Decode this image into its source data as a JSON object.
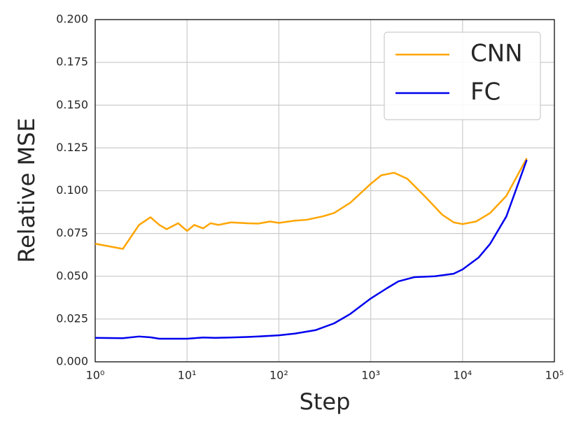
{
  "chart_data": {
    "type": "line",
    "xlabel": "Step",
    "ylabel": "Relative MSE",
    "xscale": "log",
    "xlim": [
      1,
      100000
    ],
    "xticks": [
      {
        "value": 1,
        "label": "10⁰"
      },
      {
        "value": 10,
        "label": "10¹"
      },
      {
        "value": 100,
        "label": "10²"
      },
      {
        "value": 1000,
        "label": "10³"
      },
      {
        "value": 10000,
        "label": "10⁴"
      },
      {
        "value": 100000,
        "label": "10⁵"
      }
    ],
    "ylim": [
      0,
      0.2
    ],
    "yticks": [
      {
        "value": 0,
        "label": "0.000"
      },
      {
        "value": 0.025,
        "label": "0.025"
      },
      {
        "value": 0.05,
        "label": "0.050"
      },
      {
        "value": 0.075,
        "label": "0.075"
      },
      {
        "value": 0.1,
        "label": "0.100"
      },
      {
        "value": 0.125,
        "label": "0.125"
      },
      {
        "value": 0.15,
        "label": "0.150"
      },
      {
        "value": 0.175,
        "label": "0.175"
      },
      {
        "value": 0.2,
        "label": "0.200"
      }
    ],
    "grid": true,
    "legend": "upper right",
    "series": [
      {
        "name": "CNN",
        "color": "#ffa500",
        "x": [
          1,
          2,
          3,
          4,
          5,
          6,
          8,
          10,
          12,
          15,
          18,
          22,
          30,
          45,
          60,
          80,
          100,
          150,
          200,
          300,
          400,
          600,
          1000,
          1300,
          1800,
          2500,
          4000,
          6000,
          8000,
          10000,
          14000,
          20000,
          30000,
          50000
        ],
        "values": [
          0.069,
          0.066,
          0.08,
          0.0845,
          0.08,
          0.0775,
          0.081,
          0.0765,
          0.08,
          0.078,
          0.081,
          0.08,
          0.0815,
          0.081,
          0.0808,
          0.082,
          0.0812,
          0.0825,
          0.083,
          0.085,
          0.087,
          0.093,
          0.104,
          0.109,
          0.1105,
          0.107,
          0.096,
          0.086,
          0.0815,
          0.0805,
          0.082,
          0.087,
          0.097,
          0.119
        ]
      },
      {
        "name": "FC",
        "color": "#0000ee",
        "x": [
          1,
          2,
          3,
          4,
          5,
          8,
          10,
          15,
          20,
          30,
          45,
          60,
          100,
          150,
          250,
          400,
          600,
          1000,
          1500,
          2000,
          3000,
          5000,
          8000,
          10000,
          15000,
          20000,
          30000,
          50000
        ],
        "values": [
          0.014,
          0.0138,
          0.0148,
          0.0143,
          0.0135,
          0.0135,
          0.0135,
          0.0142,
          0.014,
          0.0142,
          0.0145,
          0.0148,
          0.0155,
          0.0165,
          0.0185,
          0.0225,
          0.028,
          0.037,
          0.043,
          0.047,
          0.0495,
          0.05,
          0.0515,
          0.054,
          0.061,
          0.069,
          0.085,
          0.118
        ]
      }
    ]
  }
}
